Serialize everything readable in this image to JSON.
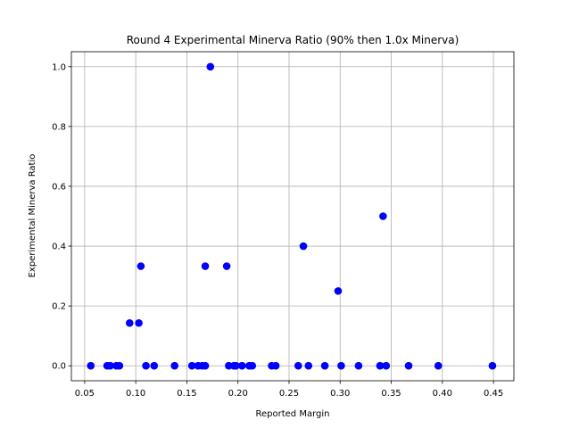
{
  "chart_data": {
    "type": "scatter",
    "title": "Round 4 Experimental Minerva Ratio (90% then 1.0x Minerva)",
    "xlabel": "Reported Margin",
    "ylabel": "Experimental Minerva Ratio",
    "xlim": [
      0.037,
      0.47
    ],
    "ylim": [
      -0.05,
      1.05
    ],
    "xticks": [
      "0.05",
      "0.10",
      "0.15",
      "0.20",
      "0.25",
      "0.30",
      "0.35",
      "0.40",
      "0.45"
    ],
    "yticks": [
      "0.0",
      "0.2",
      "0.4",
      "0.6",
      "0.8",
      "1.0"
    ],
    "grid": true,
    "marker_color": "#0000ff",
    "series": [
      {
        "x": [
          0.056,
          0.072,
          0.075,
          0.081,
          0.084,
          0.094,
          0.103,
          0.105,
          0.11,
          0.118,
          0.138,
          0.155,
          0.161,
          0.165,
          0.168,
          0.168,
          0.173,
          0.189,
          0.191,
          0.196,
          0.198,
          0.204,
          0.211,
          0.214,
          0.233,
          0.237,
          0.259,
          0.264,
          0.269,
          0.285,
          0.298,
          0.301,
          0.318,
          0.339,
          0.342,
          0.345,
          0.367,
          0.396,
          0.449
        ],
        "y": [
          0.0,
          0.0,
          0.0,
          0.0,
          0.0,
          0.143,
          0.143,
          0.333,
          0.0,
          0.0,
          0.0,
          0.0,
          0.0,
          0.0,
          0.333,
          0.0,
          1.0,
          0.333,
          0.0,
          0.0,
          0.0,
          0.0,
          0.0,
          0.0,
          0.0,
          0.0,
          0.0,
          0.4,
          0.0,
          0.0,
          0.25,
          0.0,
          0.0,
          0.0,
          0.5,
          0.0,
          0.0,
          0.0,
          0.0
        ]
      }
    ]
  }
}
